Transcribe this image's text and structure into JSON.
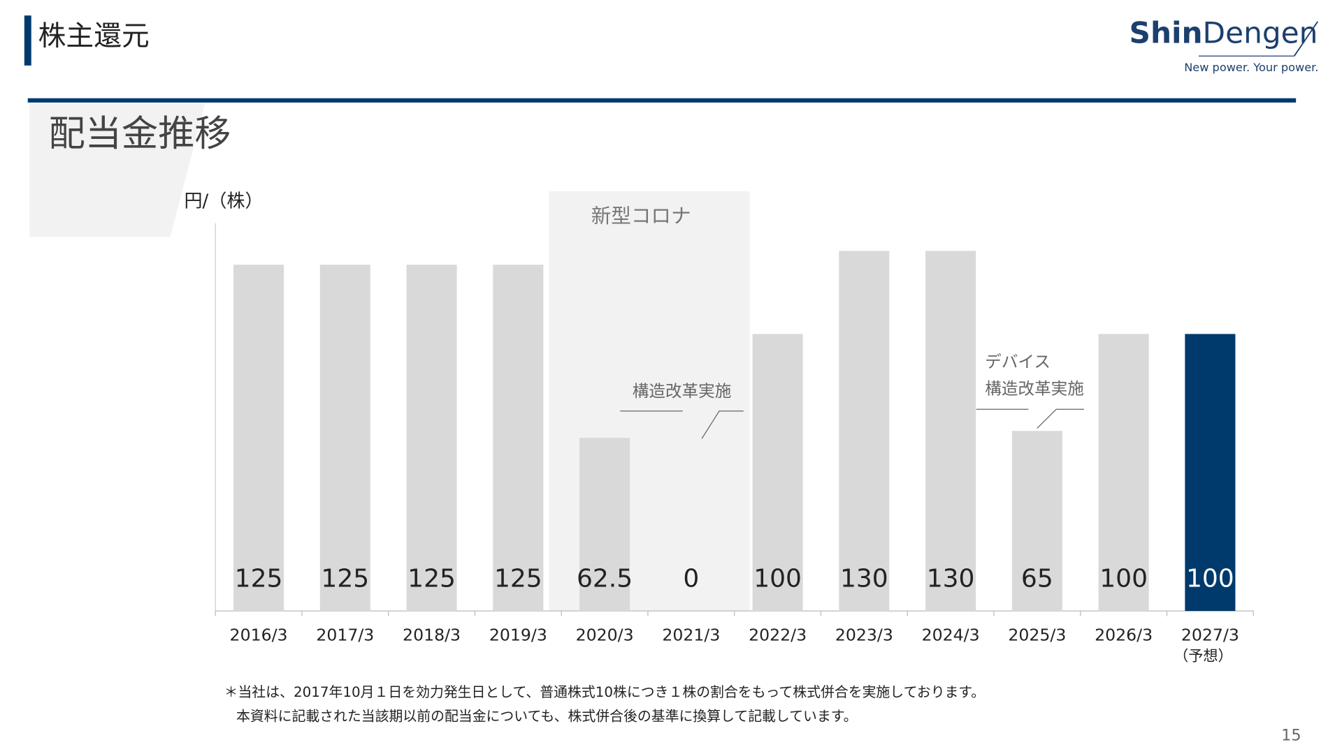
{
  "page": {
    "header": "株主還元",
    "logo": {
      "brand_bold": "Shin",
      "brand": "Dengen",
      "tagline": "New power. Your power."
    },
    "subtitle": "配当金推移",
    "footnotes": [
      "＊当社は、2017年10月１日を効力発生日として、普通株式10株につき１株の割合をもって株式併合を実施しております。",
      "本資料に記載された当該期以前の配当金についても、株式併合後の基準に換算して記載しています。"
    ],
    "page_number": "15"
  },
  "chart_data": {
    "type": "bar",
    "y_label": "円/（株）",
    "categories": [
      "2016/3",
      "2017/3",
      "2018/3",
      "2019/3",
      "2020/3",
      "2021/3",
      "2022/3",
      "2023/3",
      "2024/3",
      "2025/3",
      "2026/3",
      "2027/3"
    ],
    "forecast_note": "（予想）",
    "values": [
      125,
      125,
      125,
      125,
      62.5,
      0,
      100,
      130,
      130,
      65,
      100,
      100
    ],
    "colors": [
      "#d9d9d9",
      "#d9d9d9",
      "#d9d9d9",
      "#d9d9d9",
      "#d9d9d9",
      "#d9d9d9",
      "#d9d9d9",
      "#d9d9d9",
      "#d9d9d9",
      "#d9d9d9",
      "#d9d9d9",
      "#003a6c"
    ],
    "ylim": [
      0,
      140
    ],
    "annotations": {
      "covid": "新型コロナ",
      "restructuring_1": "構造改革実施",
      "device": "デバイス",
      "restructuring_2": "構造改革実施"
    }
  }
}
